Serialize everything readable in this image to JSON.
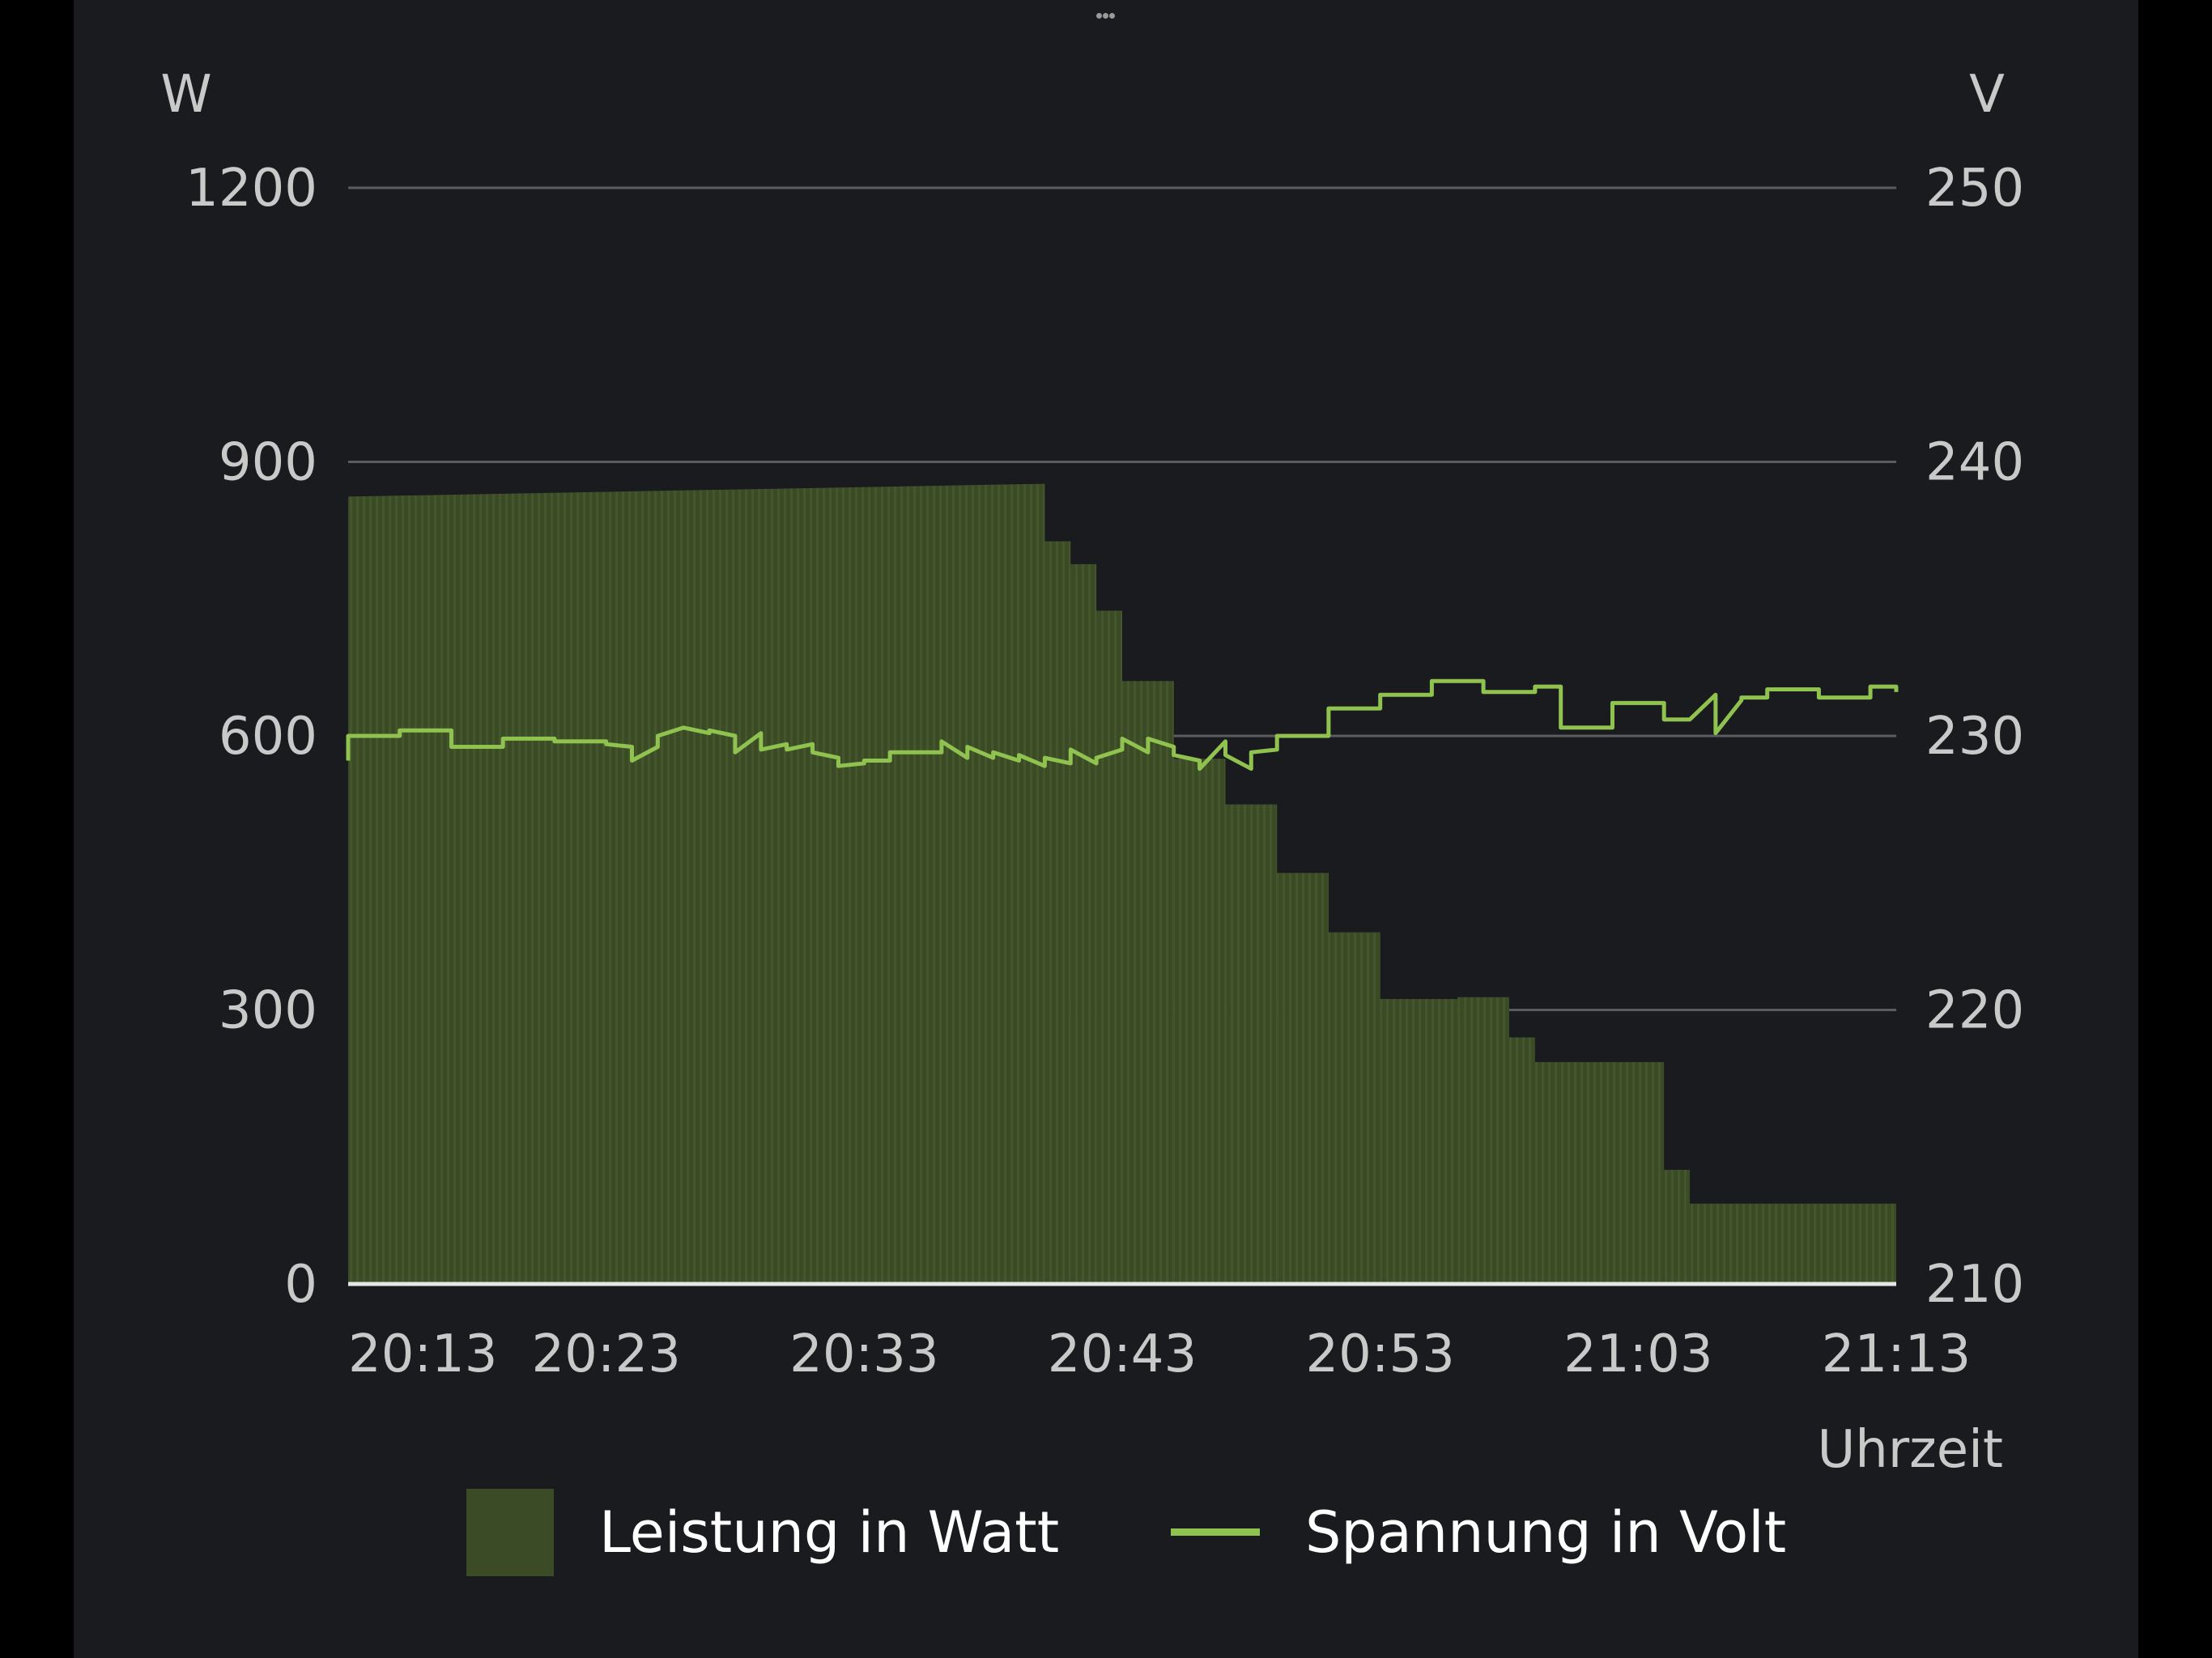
{
  "chart_data": {
    "type": "bar+line",
    "title": "",
    "left_axis": {
      "unit_label": "W",
      "ticks": [
        "1200",
        "900",
        "600",
        "300",
        "0"
      ],
      "ylim": [
        0,
        1200
      ]
    },
    "right_axis": {
      "unit_label": "V",
      "ticks": [
        "250",
        "240",
        "230",
        "220",
        "210"
      ],
      "ylim": [
        210,
        250
      ]
    },
    "x_axis": {
      "label": "Uhrzeit",
      "ticks": [
        "20:13",
        "20:23",
        "20:33",
        "20:43",
        "20:53",
        "21:03",
        "21:13"
      ],
      "range": [
        "20:13",
        "21:13"
      ]
    },
    "grid": true,
    "legend_position": "bottom",
    "colors": {
      "bar": "#3b4b26",
      "bar_stripe": "#44572c",
      "line": "#8fc24f",
      "grid": "#5a5c5f",
      "baseline": "#e6e6e6",
      "text": "#c9c9c9"
    },
    "series": [
      {
        "name": "Leistung in Watt",
        "axis": "left",
        "kind": "bar",
        "steps": [
          {
            "from": "20:13",
            "to": "20:40",
            "w_start": 862,
            "w_end": 876
          },
          {
            "from": "20:40",
            "to": "20:41",
            "w_start": 813,
            "w_end": 813
          },
          {
            "from": "20:41",
            "to": "20:42",
            "w_start": 788,
            "w_end": 788
          },
          {
            "from": "20:42",
            "to": "20:43",
            "w_start": 737,
            "w_end": 737
          },
          {
            "from": "20:43",
            "to": "20:45",
            "w_start": 660,
            "w_end": 660
          },
          {
            "from": "20:45",
            "to": "20:47",
            "w_start": 575,
            "w_end": 575
          },
          {
            "from": "20:47",
            "to": "20:49",
            "w_start": 525,
            "w_end": 525
          },
          {
            "from": "20:49",
            "to": "20:51",
            "w_start": 450,
            "w_end": 450
          },
          {
            "from": "20:51",
            "to": "20:53",
            "w_start": 385,
            "w_end": 385
          },
          {
            "from": "20:53",
            "to": "20:56",
            "w_start": 312,
            "w_end": 312
          },
          {
            "from": "20:56",
            "to": "20:58",
            "w_start": 314,
            "w_end": 314
          },
          {
            "from": "20:58",
            "to": "20:59",
            "w_start": 270,
            "w_end": 270
          },
          {
            "from": "20:59",
            "to": "21:04",
            "w_start": 243,
            "w_end": 243
          },
          {
            "from": "21:04",
            "to": "21:05",
            "w_start": 125,
            "w_end": 125
          },
          {
            "from": "21:05",
            "to": "21:13",
            "w_start": 88,
            "w_end": 88
          }
        ]
      },
      {
        "name": "Spannung in Volt",
        "axis": "right",
        "kind": "line",
        "points": [
          [
            "20:13",
            229.1
          ],
          [
            "20:13",
            230.0
          ],
          [
            "20:15",
            230.0
          ],
          [
            "20:15",
            230.2
          ],
          [
            "20:17",
            230.2
          ],
          [
            "20:17",
            229.6
          ],
          [
            "20:19",
            229.6
          ],
          [
            "20:19",
            229.9
          ],
          [
            "20:21",
            229.9
          ],
          [
            "20:21",
            229.8
          ],
          [
            "20:23",
            229.8
          ],
          [
            "20:23",
            229.7
          ],
          [
            "20:24",
            229.6
          ],
          [
            "20:24",
            229.1
          ],
          [
            "20:25",
            229.6
          ],
          [
            "20:25",
            230.0
          ],
          [
            "20:26",
            230.3
          ],
          [
            "20:27",
            230.1
          ],
          [
            "20:27",
            230.2
          ],
          [
            "20:28",
            230.0
          ],
          [
            "20:28",
            229.4
          ],
          [
            "20:29",
            230.1
          ],
          [
            "20:29",
            229.5
          ],
          [
            "20:30",
            229.7
          ],
          [
            "20:30",
            229.5
          ],
          [
            "20:31",
            229.7
          ],
          [
            "20:31",
            229.4
          ],
          [
            "20:32",
            229.2
          ],
          [
            "20:32",
            228.9
          ],
          [
            "20:33",
            229.0
          ],
          [
            "20:33",
            229.1
          ],
          [
            "20:34",
            229.1
          ],
          [
            "20:34",
            229.4
          ],
          [
            "20:36",
            229.4
          ],
          [
            "20:36",
            229.8
          ],
          [
            "20:37",
            229.2
          ],
          [
            "20:37",
            229.6
          ],
          [
            "20:38",
            229.2
          ],
          [
            "20:38",
            229.4
          ],
          [
            "20:39",
            229.1
          ],
          [
            "20:39",
            229.3
          ],
          [
            "20:40",
            228.9
          ],
          [
            "20:40",
            229.2
          ],
          [
            "20:41",
            229.0
          ],
          [
            "20:41",
            229.5
          ],
          [
            "20:42",
            229.0
          ],
          [
            "20:42",
            229.2
          ],
          [
            "20:43",
            229.5
          ],
          [
            "20:43",
            229.9
          ],
          [
            "20:44",
            229.4
          ],
          [
            "20:44",
            229.9
          ],
          [
            "20:45",
            229.6
          ],
          [
            "20:45",
            229.3
          ],
          [
            "20:46",
            229.1
          ],
          [
            "20:46",
            228.8
          ],
          [
            "20:47",
            229.8
          ],
          [
            "20:47",
            229.3
          ],
          [
            "20:48",
            228.8
          ],
          [
            "20:48",
            229.4
          ],
          [
            "20:49",
            229.5
          ],
          [
            "20:49",
            230.0
          ],
          [
            "20:51",
            230.0
          ],
          [
            "20:51",
            231.0
          ],
          [
            "20:53",
            231.0
          ],
          [
            "20:53",
            231.5
          ],
          [
            "20:55",
            231.5
          ],
          [
            "20:55",
            232.0
          ],
          [
            "20:57",
            232.0
          ],
          [
            "20:57",
            231.6
          ],
          [
            "20:59",
            231.6
          ],
          [
            "20:59",
            231.8
          ],
          [
            "21:00",
            231.8
          ],
          [
            "21:00",
            230.3
          ],
          [
            "21:02",
            230.3
          ],
          [
            "21:02",
            231.2
          ],
          [
            "21:04",
            231.2
          ],
          [
            "21:04",
            230.6
          ],
          [
            "21:05",
            230.6
          ],
          [
            "21:06",
            231.5
          ],
          [
            "21:06",
            230.1
          ],
          [
            "21:07",
            231.3
          ],
          [
            "21:07",
            231.4
          ],
          [
            "21:08",
            231.4
          ],
          [
            "21:08",
            231.7
          ],
          [
            "21:10",
            231.7
          ],
          [
            "21:10",
            231.4
          ],
          [
            "21:12",
            231.4
          ],
          [
            "21:12",
            231.8
          ],
          [
            "21:13",
            231.8
          ],
          [
            "21:13",
            231.6
          ]
        ]
      }
    ]
  }
}
